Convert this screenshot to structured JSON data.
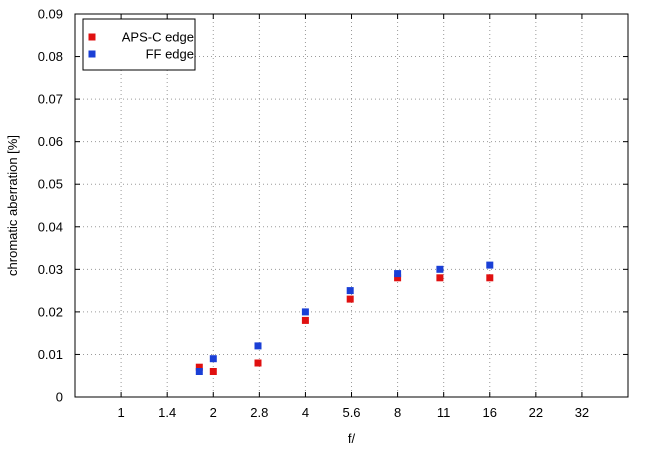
{
  "chart_data": {
    "type": "scatter",
    "xlabel": "f/",
    "ylabel": "chromatic aberration [%]",
    "x_tick_labels": [
      "1",
      "1.4",
      "2",
      "2.8",
      "4",
      "5.6",
      "8",
      "11",
      "16",
      "22",
      "32"
    ],
    "x_scale": "log2",
    "xlim": [
      0.707,
      45.25
    ],
    "y_tick_labels": [
      "0",
      "0.01",
      "0.02",
      "0.03",
      "0.04",
      "0.05",
      "0.06",
      "0.07",
      "0.08",
      "0.09"
    ],
    "ylim": [
      0,
      0.09
    ],
    "grid": true,
    "legend_position": "top-left",
    "series": [
      {
        "name": "APS-C edge",
        "color": "#e01010",
        "x": [
          1.8,
          2,
          2.8,
          4,
          5.6,
          8,
          11,
          16
        ],
        "y": [
          0.007,
          0.006,
          0.008,
          0.018,
          0.023,
          0.028,
          0.028,
          0.028
        ]
      },
      {
        "name": "FF edge",
        "color": "#1a3fd6",
        "x": [
          1.8,
          2,
          2.8,
          4,
          5.6,
          8,
          11,
          16
        ],
        "y": [
          0.006,
          0.009,
          0.012,
          0.02,
          0.025,
          0.029,
          0.03,
          0.031
        ]
      }
    ]
  }
}
